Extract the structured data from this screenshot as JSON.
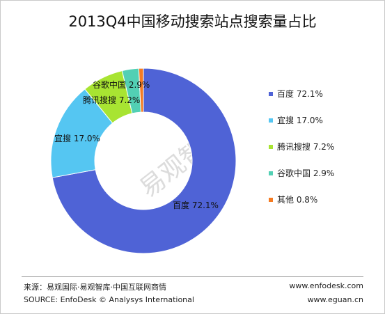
{
  "chart_data": {
    "type": "pie",
    "title": "2013Q4中国移动搜索站点搜索量占比",
    "hole": true,
    "categories": [
      "百度",
      "宜搜",
      "腾讯搜搜",
      "谷歌中国",
      "其他"
    ],
    "values": [
      72.1,
      17.0,
      7.2,
      2.9,
      0.8
    ],
    "colors": [
      "#4f63d6",
      "#55c6f2",
      "#a8e432",
      "#52d0b4",
      "#f57b22"
    ],
    "labels": [
      "百度 72.1%",
      "宜搜 17.0%",
      "腾讯搜搜 7.2%",
      "谷歌中国 2.9%",
      "其他 0.8%"
    ],
    "legend": {
      "placement": "right",
      "items": [
        "百度 72.1%",
        "宜搜 17.0%",
        "腾讯搜搜 7.2%",
        "谷歌中国 2.9%",
        "其他 0.8%"
      ]
    }
  },
  "watermark": "易观智库",
  "footer": {
    "source_cn": "来源：易观国际·易观智库·中国互联网商情",
    "source_en": "SOURCE: EnfoDesk © Analysys International",
    "site1": "www.enfodesk.com",
    "site2": "www.eguan.cn"
  }
}
